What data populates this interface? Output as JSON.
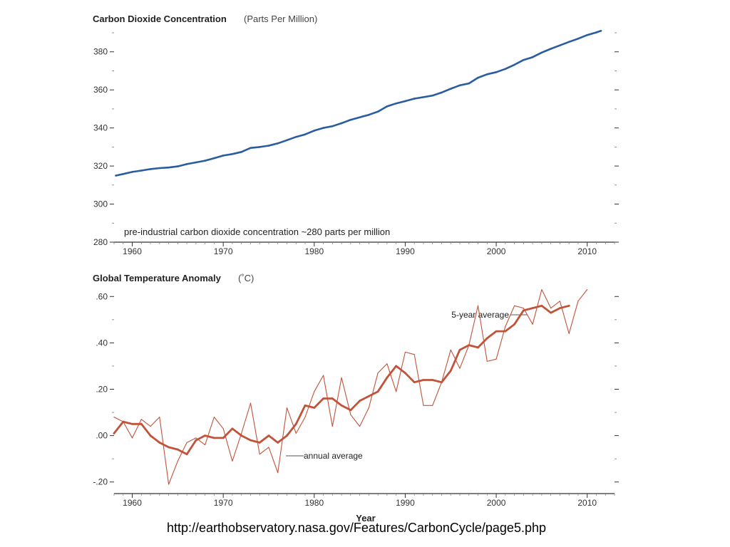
{
  "page": {
    "source_url": "http://earthobservatory.nasa.gov/Features/CarbonCycle/page5.php"
  },
  "colors": {
    "co2_line": "#2a5d9f",
    "temp_line": "#c0533a",
    "axis": "#333333",
    "text": "#222222"
  },
  "chart_data": [
    {
      "type": "line",
      "title": "Carbon Dioxide Concentration",
      "subtitle": "(Parts Per Million)",
      "annotation": "pre-industrial carbon dioxide concentration ~280 parts per million",
      "xlim": [
        1958,
        2013
      ],
      "ylim": [
        280,
        393
      ],
      "xticks": [
        1960,
        1970,
        1980,
        1990,
        2000,
        2010
      ],
      "yticks": [
        280,
        300,
        320,
        340,
        360,
        380
      ],
      "grid": false,
      "series": [
        {
          "x": [
            1958.2,
            1959,
            1960,
            1961,
            1962,
            1963,
            1964,
            1965,
            1966,
            1967,
            1968,
            1969,
            1970,
            1971,
            1972,
            1973,
            1974,
            1975,
            1976,
            1977,
            1978,
            1979,
            1980,
            1981,
            1982,
            1983,
            1984,
            1985,
            1986,
            1987,
            1988,
            1989,
            1990,
            1991,
            1992,
            1993,
            1994,
            1995,
            1996,
            1997,
            1998,
            1999,
            2000,
            2001,
            2002,
            2003,
            2004,
            2005,
            2006,
            2007,
            2008,
            2009,
            2010,
            2011,
            2011.5
          ],
          "values": [
            315.0,
            315.8,
            316.9,
            317.6,
            318.4,
            318.9,
            319.2,
            319.8,
            321.0,
            321.9,
            322.8,
            324.1,
            325.5,
            326.3,
            327.4,
            329.5,
            330.0,
            330.7,
            331.9,
            333.6,
            335.3,
            336.6,
            338.6,
            340.0,
            340.9,
            342.5,
            344.3,
            345.6,
            346.9,
            348.6,
            351.3,
            352.9,
            354.1,
            355.4,
            356.2,
            357.0,
            358.6,
            360.6,
            362.4,
            363.4,
            366.4,
            368.2,
            369.3,
            371.0,
            373.2,
            375.7,
            377.2,
            379.6,
            381.6,
            383.4,
            385.2,
            386.9,
            388.8,
            390.2,
            391.0
          ]
        }
      ]
    },
    {
      "type": "line",
      "title": "Global Temperature Anomaly",
      "subtitle": "(˚C)",
      "xlabel": "Year",
      "xlim": [
        1958,
        2013
      ],
      "ylim": [
        -0.25,
        0.65
      ],
      "xticks": [
        1960,
        1970,
        1980,
        1990,
        2000,
        2010
      ],
      "yticks": [
        -0.2,
        0.0,
        0.2,
        0.4,
        0.6
      ],
      "ytick_labels": [
        "-.20",
        ".00",
        ".20",
        ".40",
        ".60"
      ],
      "grid": false,
      "series": [
        {
          "name": "annual average",
          "x": [
            1958,
            1959,
            1960,
            1961,
            1962,
            1963,
            1964,
            1965,
            1966,
            1967,
            1968,
            1969,
            1970,
            1971,
            1972,
            1973,
            1974,
            1975,
            1976,
            1977,
            1978,
            1979,
            1980,
            1981,
            1982,
            1983,
            1984,
            1985,
            1986,
            1987,
            1988,
            1989,
            1990,
            1991,
            1992,
            1993,
            1994,
            1995,
            1996,
            1997,
            1998,
            1999,
            2000,
            2001,
            2002,
            2003,
            2004,
            2005,
            2006,
            2007,
            2008,
            2009,
            2010
          ],
          "values": [
            0.08,
            0.06,
            -0.01,
            0.07,
            0.04,
            0.08,
            -0.21,
            -0.11,
            -0.03,
            -0.01,
            -0.04,
            0.08,
            0.03,
            -0.11,
            0.01,
            0.14,
            -0.08,
            -0.05,
            -0.16,
            0.12,
            0.01,
            0.08,
            0.19,
            0.26,
            0.04,
            0.25,
            0.09,
            0.04,
            0.12,
            0.27,
            0.31,
            0.19,
            0.36,
            0.35,
            0.13,
            0.13,
            0.23,
            0.37,
            0.29,
            0.39,
            0.56,
            0.32,
            0.33,
            0.47,
            0.56,
            0.55,
            0.48,
            0.63,
            0.55,
            0.58,
            0.44,
            0.58,
            0.63
          ]
        },
        {
          "name": "5-year average",
          "x": [
            1958,
            1959,
            1960,
            1961,
            1962,
            1963,
            1964,
            1965,
            1966,
            1967,
            1968,
            1969,
            1970,
            1971,
            1972,
            1973,
            1974,
            1975,
            1976,
            1977,
            1978,
            1979,
            1980,
            1981,
            1982,
            1983,
            1984,
            1985,
            1986,
            1987,
            1988,
            1989,
            1990,
            1991,
            1992,
            1993,
            1994,
            1995,
            1996,
            1997,
            1998,
            1999,
            2000,
            2001,
            2002,
            2003,
            2004,
            2005,
            2006,
            2007,
            2008
          ],
          "values": [
            0.01,
            0.06,
            0.05,
            0.05,
            0.0,
            -0.03,
            -0.05,
            -0.06,
            -0.08,
            -0.02,
            0.0,
            -0.01,
            -0.01,
            0.03,
            0.0,
            -0.02,
            -0.03,
            0.0,
            -0.03,
            0.0,
            0.05,
            0.13,
            0.12,
            0.16,
            0.16,
            0.13,
            0.11,
            0.15,
            0.17,
            0.19,
            0.25,
            0.3,
            0.27,
            0.23,
            0.24,
            0.24,
            0.23,
            0.28,
            0.37,
            0.39,
            0.38,
            0.42,
            0.45,
            0.45,
            0.48,
            0.54,
            0.55,
            0.56,
            0.53,
            0.55,
            0.56
          ]
        }
      ]
    }
  ]
}
